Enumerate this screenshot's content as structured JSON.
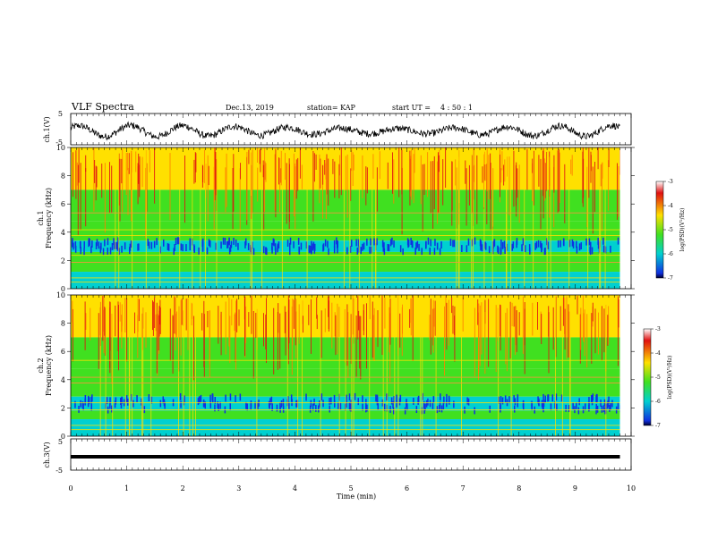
{
  "header": {
    "title": "VLF Spectra",
    "date": "Dec.13, 2019",
    "station": "station= KAP",
    "start_label": "start  UT =",
    "start_time": "4 : 50 : 1"
  },
  "chart_data": [
    {
      "type": "line",
      "ylabel": "ch.1(V)",
      "ylim": [
        -5,
        5
      ],
      "yticks": [
        "5",
        "-5"
      ],
      "description_series": "noisy waveform roughly between -3 and 2 V with slow oscillation",
      "series": [
        {
          "values_mean": -0.5,
          "amplitude": 2.5
        }
      ]
    },
    {
      "type": "heatmap",
      "ylabel": "ch.1\nFrequency (kHz)",
      "ylim": [
        0,
        10
      ],
      "yticks": [
        "0",
        "2",
        "4",
        "6",
        "8",
        "10"
      ],
      "colorbar": {
        "label": "log(PSD)(V²/Hz)",
        "range": [
          -7,
          -3
        ],
        "ticks": [
          "-3",
          "-4",
          "-5",
          "-6",
          "-7"
        ]
      }
    },
    {
      "type": "heatmap",
      "ylabel": "ch.2\nFrequency (kHz)",
      "ylim": [
        0,
        10
      ],
      "yticks": [
        "0",
        "2",
        "4",
        "6",
        "8",
        "10"
      ],
      "colorbar": {
        "label": "log(PSD)(V²/Hz)",
        "range": [
          -7,
          -3
        ],
        "ticks": [
          "-3",
          "-4",
          "-5",
          "-6",
          "-7"
        ]
      }
    },
    {
      "type": "line",
      "ylabel": "ch.3(V)",
      "ylim": [
        -5,
        5
      ],
      "yticks": [
        "5",
        "-5"
      ],
      "series": [
        {
          "constant": 0
        }
      ]
    }
  ],
  "xaxis": {
    "label": "Time (min)",
    "range": [
      0,
      10
    ],
    "ticks": [
      "0",
      "1",
      "2",
      "3",
      "4",
      "5",
      "6",
      "7",
      "8",
      "9",
      "10"
    ],
    "data_end": 9.8
  },
  "colors": {
    "red": "#e01010",
    "yellow": "#ffe000",
    "green": "#40e020",
    "cyan": "#00d0d0",
    "blue": "#1030e0",
    "black": "#000000"
  }
}
